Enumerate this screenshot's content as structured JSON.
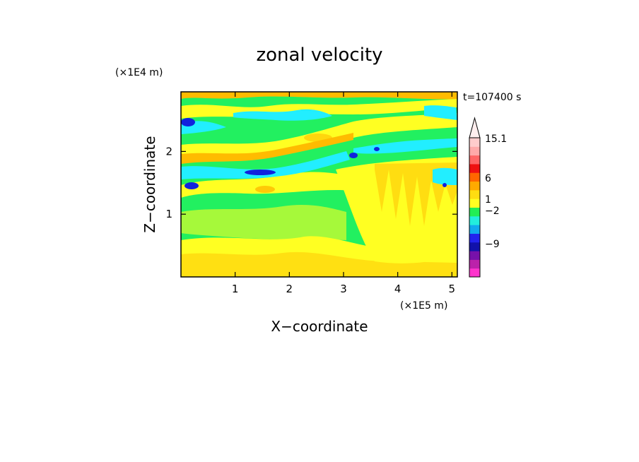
{
  "chart_data": {
    "type": "heatmap",
    "title": "zonal velocity",
    "xlabel": "X−coordinate",
    "ylabel": "Z−coordinate",
    "x_unit": "(×1E5 m)",
    "y_unit": "(×1E4 m)",
    "time_label": "t=107400 s",
    "xlim": [
      0,
      5.1
    ],
    "ylim": [
      0,
      2.95
    ],
    "x_ticks": [
      {
        "value": 1,
        "label": "1"
      },
      {
        "value": 2,
        "label": "2"
      },
      {
        "value": 3,
        "label": "3"
      },
      {
        "value": 4,
        "label": "4"
      },
      {
        "value": 5,
        "label": "5"
      }
    ],
    "y_ticks": [
      {
        "value": 1,
        "label": "1"
      },
      {
        "value": 2,
        "label": "2"
      }
    ],
    "colorbar": {
      "levels": [
        {
          "color": "#ff33cc"
        },
        {
          "color": "#bb22aa"
        },
        {
          "color": "#7711aa"
        },
        {
          "color": "#1111aa"
        },
        {
          "color": "#2222ee"
        },
        {
          "color": "#11aaee"
        },
        {
          "color": "#22eedd"
        },
        {
          "color": "#22ee55"
        },
        {
          "color": "#ffff22"
        },
        {
          "color": "#ffdd11"
        },
        {
          "color": "#ffaa00"
        },
        {
          "color": "#ff6600"
        },
        {
          "color": "#ee1111"
        },
        {
          "color": "#ff6666"
        },
        {
          "color": "#ffaaaa"
        },
        {
          "color": "#ffcccc"
        }
      ],
      "labels": [
        {
          "text": "15.1"
        },
        {
          "text": "6"
        },
        {
          "text": "1"
        },
        {
          "text": "−2"
        },
        {
          "text": "−9"
        }
      ]
    },
    "field_colors": {
      "dark_blue": "#1122dd",
      "cyan": "#22eeff",
      "green": "#22f060",
      "yellow": "#ffff22",
      "orange": "#ffbb00"
    }
  }
}
